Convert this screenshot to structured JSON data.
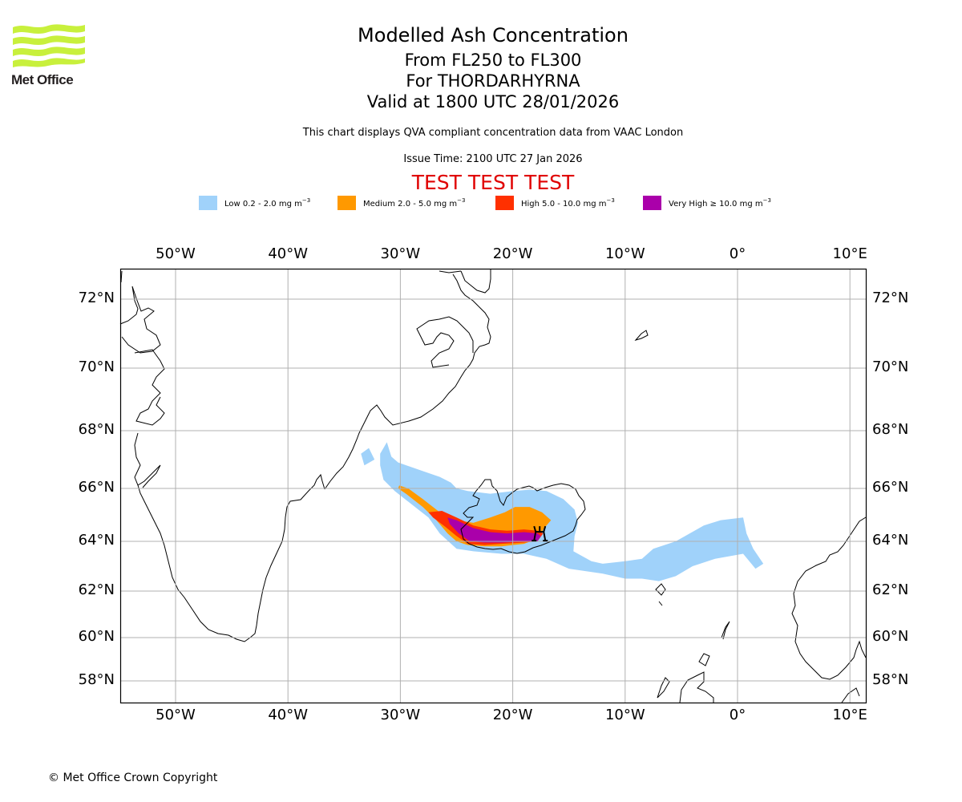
{
  "logo": {
    "text": "Met Office",
    "brand_color": "#c8f03c",
    "icon": "met-office-waves-logo"
  },
  "header": {
    "title": "Modelled Ash Concentration",
    "flight_levels": "From FL250 to FL300",
    "volcano": "For THORDARHYRNA",
    "valid_time": "Valid at 1800 UTC 28/01/2026",
    "description": "This chart displays QVA compliant concentration data from VAAC London",
    "issue_time": "Issue Time: 2100 UTC 27 Jan 2026",
    "test_banner": "TEST TEST TEST",
    "test_banner_color": "#e00000"
  },
  "legend": [
    {
      "label": "Low 0.2 - 2.0 mg m",
      "unit_exp": "−3",
      "color": "#a0d2fa"
    },
    {
      "label": "Medium 2.0 - 5.0 mg m",
      "unit_exp": "−3",
      "color": "#ff9900"
    },
    {
      "label": "High 5.0 - 10.0 mg m",
      "unit_exp": "−3",
      "color": "#ff3000"
    },
    {
      "label": "Very High  ≥  10.0 mg m",
      "unit_exp": "−3",
      "color": "#aa00aa"
    }
  ],
  "chart_data": {
    "type": "map",
    "title": "Modelled Ash Concentration",
    "subtitle": "From FL250 to FL300 — For THORDARHYRNA — Valid at 1800 UTC 28/01/2026",
    "projection": "equirectangular-like (Plate Carrée region)",
    "extent": {
      "lon": [
        -55,
        11.5
      ],
      "lat": [
        57.2,
        73
      ]
    },
    "grid": true,
    "x_ticks": [
      "50°W",
      "40°W",
      "30°W",
      "20°W",
      "10°W",
      "0°",
      "10°E"
    ],
    "x_tick_values": [
      -50,
      -40,
      -30,
      -20,
      -10,
      0,
      10
    ],
    "y_ticks": [
      "72°N",
      "70°N",
      "68°N",
      "66°N",
      "64°N",
      "62°N",
      "60°N",
      "58°N"
    ],
    "y_tick_values": [
      72,
      70,
      68,
      66,
      64,
      62,
      60,
      58
    ],
    "volcano_marker": {
      "name": "THORDARHYRNA",
      "lon": -17.6,
      "lat": 64.3,
      "icon": "volcano-icon"
    },
    "regions": [
      {
        "level": "Low",
        "range": "0.2 - 2.0 mg m-3",
        "polygon": [
          [
            -31.8,
            67.2
          ],
          [
            -31.2,
            67.6
          ],
          [
            -30.8,
            67.1
          ],
          [
            -30.2,
            66.9
          ],
          [
            -28,
            66.6
          ],
          [
            -26.5,
            66.4
          ],
          [
            -25.5,
            66.2
          ],
          [
            -25,
            66.0
          ],
          [
            -24,
            65.9
          ],
          [
            -22,
            65.8
          ],
          [
            -20,
            65.9
          ],
          [
            -18.5,
            65.95
          ],
          [
            -17,
            65.9
          ],
          [
            -15.5,
            65.6
          ],
          [
            -14.5,
            65.2
          ],
          [
            -14.2,
            64.7
          ],
          [
            -14.5,
            64.2
          ],
          [
            -14.6,
            63.6
          ],
          [
            -13,
            63.2
          ],
          [
            -12,
            63.1
          ],
          [
            -10,
            63.2
          ],
          [
            -8.5,
            63.3
          ],
          [
            -7.5,
            63.7
          ],
          [
            -5.5,
            64.0
          ],
          [
            -3,
            64.6
          ],
          [
            -1.5,
            64.8
          ],
          [
            0.5,
            64.9
          ],
          [
            0.8,
            64.3
          ],
          [
            1.4,
            63.7
          ],
          [
            2.3,
            63.1
          ],
          [
            1.6,
            62.9
          ],
          [
            0.5,
            63.5
          ],
          [
            -2,
            63.3
          ],
          [
            -4,
            63.0
          ],
          [
            -5.5,
            62.6
          ],
          [
            -7,
            62.4
          ],
          [
            -8.5,
            62.5
          ],
          [
            -10,
            62.5
          ],
          [
            -12,
            62.7
          ],
          [
            -15,
            62.9
          ],
          [
            -17,
            63.3
          ],
          [
            -19,
            63.5
          ],
          [
            -21,
            63.5
          ],
          [
            -23.5,
            63.6
          ],
          [
            -25,
            63.7
          ],
          [
            -26.5,
            64.3
          ],
          [
            -27.5,
            64.9
          ],
          [
            -29,
            65.4
          ],
          [
            -30.5,
            65.9
          ],
          [
            -31.5,
            66.3
          ],
          [
            -31.8,
            66.8
          ]
        ]
      },
      {
        "level": "Low",
        "range": "0.2 - 2.0 mg m-3",
        "polygon": [
          [
            -33.5,
            67.2
          ],
          [
            -32.8,
            67.4
          ],
          [
            -32.3,
            67.0
          ],
          [
            -33.2,
            66.8
          ]
        ]
      },
      {
        "level": "Medium",
        "range": "2.0 - 5.0 mg m-3",
        "polygon": [
          [
            -30.1,
            66.1
          ],
          [
            -29.3,
            66.0
          ],
          [
            -28,
            65.6
          ],
          [
            -26.5,
            65.1
          ],
          [
            -25,
            64.8
          ],
          [
            -23.5,
            64.7
          ],
          [
            -22,
            64.9
          ],
          [
            -20.7,
            65.1
          ],
          [
            -19.8,
            65.3
          ],
          [
            -18.5,
            65.3
          ],
          [
            -17.4,
            65.1
          ],
          [
            -16.6,
            64.8
          ],
          [
            -17.2,
            64.5
          ],
          [
            -17.8,
            64.1
          ],
          [
            -19,
            63.9
          ],
          [
            -21,
            63.8
          ],
          [
            -22.5,
            63.8
          ],
          [
            -24,
            63.85
          ],
          [
            -25,
            64.0
          ],
          [
            -25.8,
            64.3
          ],
          [
            -26.8,
            64.8
          ],
          [
            -28,
            65.3
          ],
          [
            -29.5,
            65.8
          ],
          [
            -30.2,
            66.0
          ]
        ]
      },
      {
        "level": "High",
        "range": "5.0 - 10.0 mg m-3",
        "polygon": [
          [
            -27.5,
            65.1
          ],
          [
            -26.3,
            65.15
          ],
          [
            -25,
            64.9
          ],
          [
            -23.5,
            64.6
          ],
          [
            -22,
            64.45
          ],
          [
            -20.5,
            64.4
          ],
          [
            -19,
            64.45
          ],
          [
            -17.8,
            64.4
          ],
          [
            -17.3,
            64.3
          ],
          [
            -17.8,
            64.0
          ],
          [
            -19,
            63.95
          ],
          [
            -21,
            63.9
          ],
          [
            -22.5,
            63.85
          ],
          [
            -24,
            63.9
          ],
          [
            -25,
            64.2
          ],
          [
            -26,
            64.55
          ],
          [
            -27.1,
            64.9
          ]
        ]
      },
      {
        "level": "Very High",
        "range": ">= 10.0 mg m-3",
        "polygon": [
          [
            -25.8,
            64.9
          ],
          [
            -25,
            64.8
          ],
          [
            -23.5,
            64.5
          ],
          [
            -22,
            64.35
          ],
          [
            -20.5,
            64.3
          ],
          [
            -19,
            64.35
          ],
          [
            -17.8,
            64.3
          ],
          [
            -17.5,
            64.2
          ],
          [
            -17.8,
            64.0
          ],
          [
            -19,
            64.0
          ],
          [
            -21,
            63.95
          ],
          [
            -22.5,
            63.95
          ],
          [
            -23.8,
            64.0
          ],
          [
            -24.8,
            64.3
          ],
          [
            -25.6,
            64.65
          ]
        ]
      }
    ]
  },
  "footer": {
    "copyright": "© Met Office Crown Copyright"
  }
}
